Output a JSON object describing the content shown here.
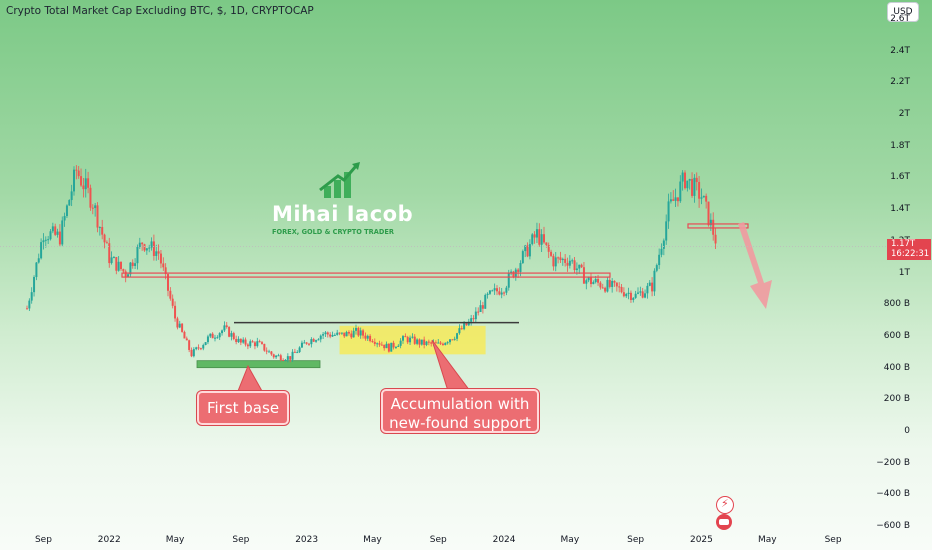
{
  "header": {
    "title": "Crypto Total Market Cap Excluding BTC, $, 1D, CRYPTOCAP",
    "currency_button": "USD"
  },
  "price_tag": {
    "value": "1.17T",
    "countdown": "16:22:31",
    "color": "#e3444f"
  },
  "branding": {
    "name": "Mihai Iacob",
    "tagline": "FOREX, GOLD & CRYPTO TRADER"
  },
  "annotations": {
    "callout_first_base": "First base",
    "callout_accumulation": "Accumulation with\nnew-found support"
  },
  "colors": {
    "up": "#26a69a",
    "down": "#ef5350",
    "resistance": "#e84b55",
    "support_box": "#4caf50",
    "accumulation_box": "#f6ea5a",
    "range_line": "#3b3b3b",
    "projection_arrow": "#f19aa0"
  },
  "chart_data": {
    "type": "candlestick",
    "title": "Crypto Total Market Cap Excluding BTC, $, 1D, CRYPTOCAP",
    "y_unit": "USD",
    "y_ticks": [
      "2.6T",
      "2.4T",
      "2.2T",
      "2T",
      "1.8T",
      "1.6T",
      "1.4T",
      "1.2T",
      "1T",
      "800 B",
      "600 B",
      "400 B",
      "200 B",
      "0",
      "−200 B",
      "−400 B",
      "−600 B"
    ],
    "y_range": [
      -600000000000,
      2600000000000
    ],
    "x_ticks": [
      "Sep",
      "2022",
      "May",
      "Sep",
      "2023",
      "May",
      "Sep",
      "2024",
      "May",
      "Sep",
      "2025",
      "May",
      "Sep"
    ],
    "close_series_billions": {
      "x": [
        "2021-08",
        "2021-09",
        "2021-10",
        "2021-11",
        "2021-12",
        "2022-01",
        "2022-02",
        "2022-03",
        "2022-04",
        "2022-05",
        "2022-06",
        "2022-07",
        "2022-08",
        "2022-09",
        "2022-10",
        "2022-11",
        "2022-12",
        "2023-01",
        "2023-02",
        "2023-03",
        "2023-04",
        "2023-05",
        "2023-06",
        "2023-07",
        "2023-08",
        "2023-09",
        "2023-10",
        "2023-11",
        "2023-12",
        "2024-01",
        "2024-02",
        "2024-03",
        "2024-04",
        "2024-05",
        "2024-06",
        "2024-07",
        "2024-08",
        "2024-09",
        "2024-10",
        "2024-11",
        "2024-12",
        "2025-01",
        "2025-02"
      ],
      "y": [
        780,
        1260,
        1230,
        1650,
        1450,
        1100,
        1000,
        1200,
        1130,
        720,
        490,
        590,
        650,
        560,
        560,
        480,
        470,
        570,
        620,
        610,
        630,
        590,
        530,
        590,
        560,
        550,
        610,
        700,
        850,
        920,
        1080,
        1250,
        1080,
        1090,
        960,
        930,
        900,
        860,
        920,
        1400,
        1600,
        1490,
        1170
      ]
    },
    "levels": [
      {
        "label": "resistance-flip",
        "value_billions": 990
      },
      {
        "label": "range-top",
        "value_billions": 690
      },
      {
        "label": "first-base-support",
        "value_billions": 430
      },
      {
        "label": "recent-rejection",
        "value_billions": 1300
      }
    ],
    "zones": [
      {
        "label": "accumulation",
        "x_from": "2023-03",
        "x_to": "2023-12",
        "y_from_billions": 490,
        "y_to_billions": 670
      }
    ],
    "last_price": "1.17T"
  }
}
